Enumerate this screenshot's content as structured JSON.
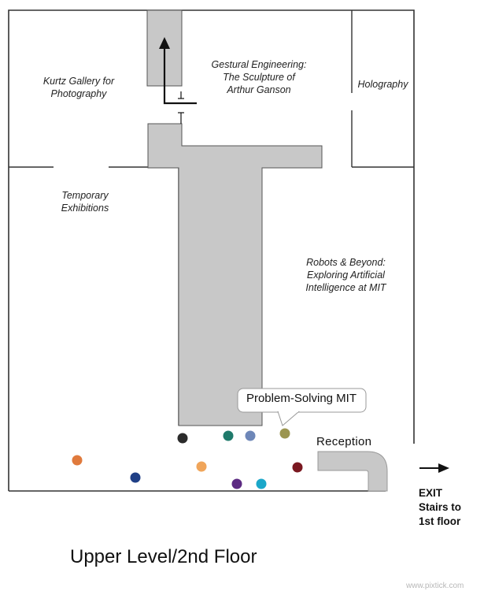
{
  "rooms": {
    "kurtz": [
      "Kurtz Gallery for",
      "Photography"
    ],
    "gestural": [
      "Gestural Engineering:",
      "The Sculpture of",
      "Arthur Ganson"
    ],
    "holography": [
      "Holography"
    ],
    "temporary": [
      "Temporary",
      "Exhibitions"
    ],
    "robots": [
      "Robots & Beyond:",
      "Exploring Artificial",
      "Intelligence at MIT"
    ]
  },
  "callout_label": "Problem-Solving MIT",
  "reception_label": "Reception",
  "exit": [
    "EXIT",
    "Stairs to",
    "1st floor"
  ],
  "floor_title": "Upper Level/2nd Floor",
  "watermark": "www.pixtick.com",
  "colors": {
    "walls": "#333333",
    "corridor": "#c8c8c8",
    "corridor_outline": "#555555"
  },
  "markers": [
    {
      "color": "#2b2b2b"
    },
    {
      "color": "#1f7a6b"
    },
    {
      "color": "#6e87b8"
    },
    {
      "color": "#9b9550"
    },
    {
      "color": "#e07a3c"
    },
    {
      "color": "#f0a55a"
    },
    {
      "color": "#7a1820"
    },
    {
      "color": "#1f3f86"
    },
    {
      "color": "#5c2a82"
    },
    {
      "color": "#1ba7c9"
    }
  ]
}
